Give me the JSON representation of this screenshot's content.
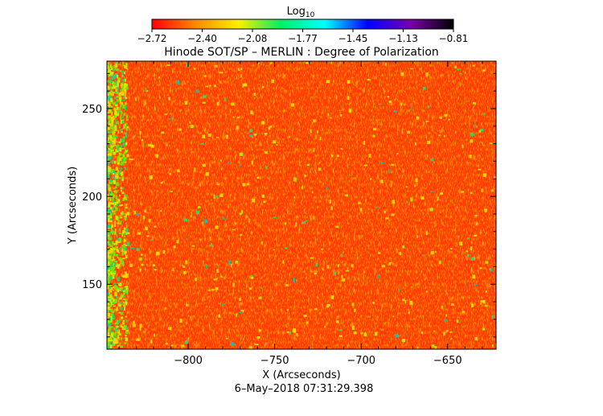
{
  "chart_data": {
    "type": "heatmap",
    "title": "Hinode SOT/SP – MERLIN : Degree of Polarization",
    "xlabel": "X (Arcseconds)",
    "ylabel": "Y (Arcseconds)",
    "xlim": [
      -847,
      -622
    ],
    "ylim": [
      113,
      277
    ],
    "x_ticks": [
      -800,
      -750,
      -700,
      -650
    ],
    "x_tick_labels": [
      "−800",
      "−750",
      "−700",
      "−650"
    ],
    "y_ticks": [
      150,
      200,
      250
    ],
    "y_tick_labels": [
      "150",
      "200",
      "250"
    ],
    "timestamp": "6–May–2018 07:31:29.398",
    "colorbar": {
      "label_base": "Log",
      "label_sub": "10",
      "tick_labels": [
        "−2.72",
        "−2.40",
        "−2.08",
        "−1.77",
        "−1.45",
        "−1.13",
        "−0.81"
      ],
      "colors": [
        "#ff0000",
        "#ff8800",
        "#ffee00",
        "#00ee66",
        "#00ffff",
        "#0000ff",
        "#7700aa",
        "#000000"
      ]
    }
  }
}
